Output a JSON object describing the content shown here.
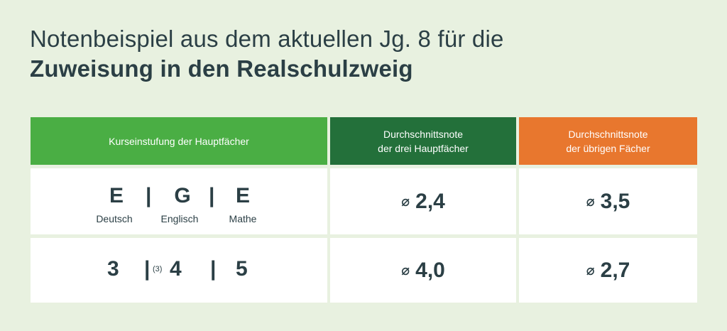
{
  "title": {
    "line1": "Notenbeispiel aus dem aktuellen Jg. 8 für die",
    "line2": "Zuweisung in den Realschulzweig"
  },
  "headers": {
    "col1": "Kurseinstufung der Hauptfächer",
    "col2_line1": "Durchschnittsnote",
    "col2_line2": "der drei Hauptfächer",
    "col3_line1": "Durchschnittsnote",
    "col3_line2": "der übrigen Fächer"
  },
  "colors": {
    "header_green": "#4aae44",
    "header_dark_green": "#23703a",
    "header_orange": "#e8772e",
    "background": "#e8f1e0",
    "text": "#2b3f45"
  },
  "average_symbol": "⌀",
  "separator": "|",
  "rows": [
    {
      "courses": [
        {
          "level": "E",
          "subject": "Deutsch"
        },
        {
          "level": "G",
          "subject": "Englisch"
        },
        {
          "level": "E",
          "subject": "Mathe"
        }
      ],
      "avg_main": "2,4",
      "avg_other": "3,5"
    },
    {
      "grades": [
        "3",
        "4",
        "5"
      ],
      "grade_note": "(3)",
      "avg_main": "4,0",
      "avg_other": "2,7"
    }
  ]
}
